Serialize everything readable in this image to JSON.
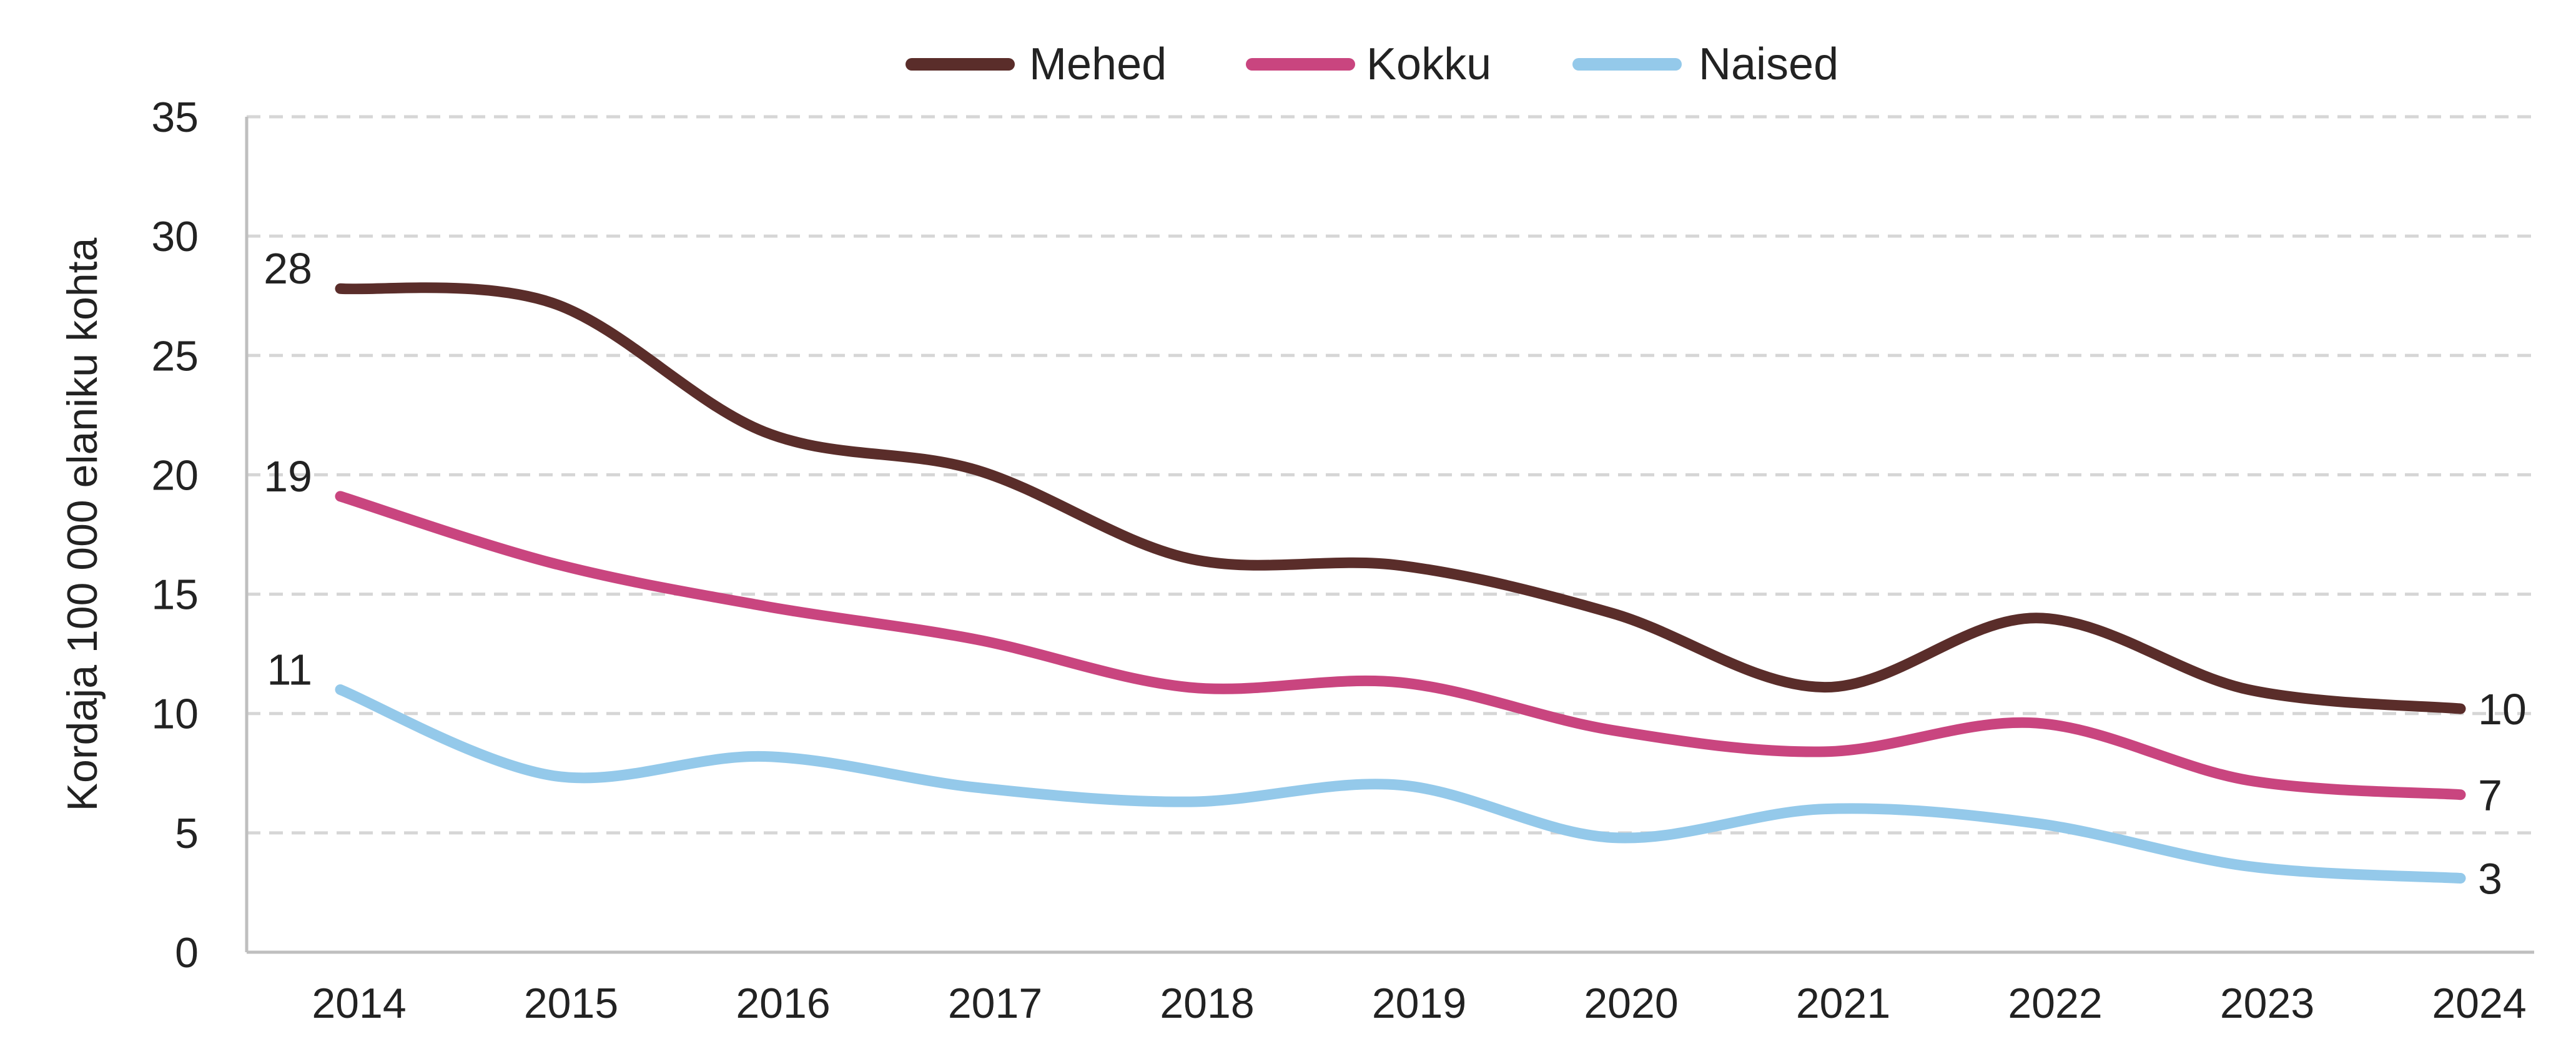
{
  "chart_data": {
    "type": "line",
    "title": "",
    "xlabel": "",
    "ylabel": "Kordaja 100 000 elaniku kohta",
    "ylim": [
      0,
      35
    ],
    "yticks": [
      "0",
      "5",
      "10",
      "15",
      "20",
      "25",
      "30",
      "35"
    ],
    "categories": [
      "2014",
      "2015",
      "2016",
      "2017",
      "2018",
      "2019",
      "2020",
      "2021",
      "2022",
      "2023",
      "2024"
    ],
    "grid": true,
    "legend_position": "top-center",
    "series": [
      {
        "name": "Mehed",
        "color": "#5a2d2a",
        "values": [
          27.8,
          27.2,
          21.8,
          20.2,
          16.5,
          16.2,
          14.2,
          11.1,
          14.0,
          11.0,
          10.2
        ],
        "start_label": "28",
        "end_label": "10"
      },
      {
        "name": "Kokku",
        "color": "#c9457f",
        "values": [
          19.1,
          16.3,
          14.5,
          13.1,
          11.1,
          11.3,
          9.3,
          8.4,
          9.6,
          7.2,
          6.6
        ],
        "start_label": "19",
        "end_label": "7"
      },
      {
        "name": "Naised",
        "color": "#94c9ea",
        "values": [
          11.0,
          7.4,
          8.2,
          6.9,
          6.3,
          7.0,
          4.8,
          6.0,
          5.4,
          3.6,
          3.1
        ],
        "start_label": "11",
        "end_label": "3"
      }
    ]
  }
}
